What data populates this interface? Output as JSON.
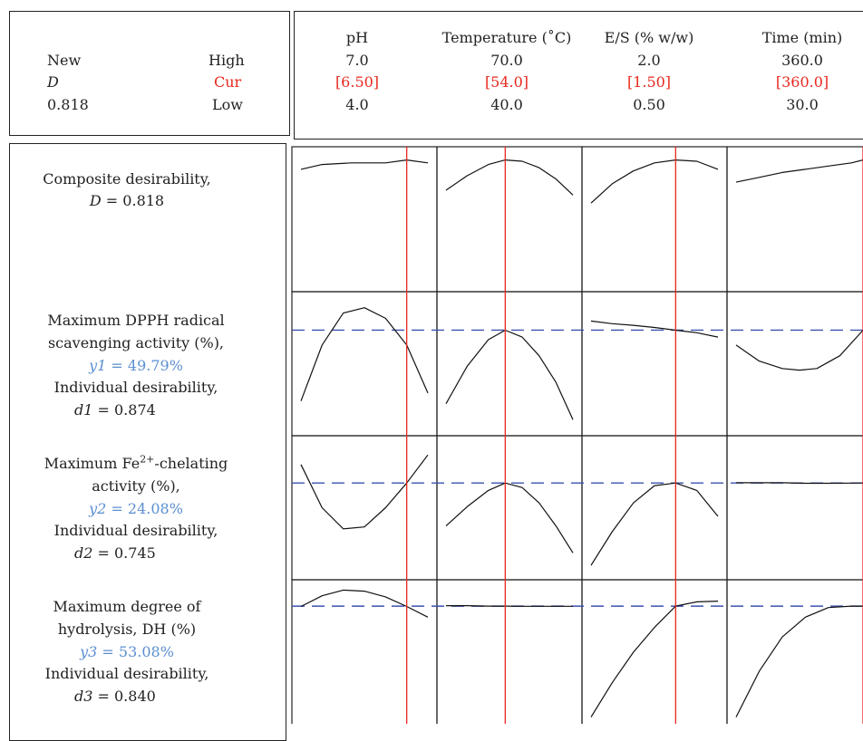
{
  "header": {
    "left": {
      "new_label": "New",
      "d_label": "D",
      "d_value": "0.818",
      "high_label": "High",
      "cur_label": "Cur",
      "low_label": "Low"
    },
    "factors": [
      {
        "name": "pH",
        "high": "7.0",
        "cur": "[6.50]",
        "low": "4.0"
      },
      {
        "name": "Temperature (˚C)",
        "high": "70.0",
        "cur": "[54.0]",
        "low": "40.0"
      },
      {
        "name": "E/S (% w/w)",
        "high": "2.0",
        "cur": "[1.50]",
        "low": "0.50"
      },
      {
        "name": "Time (min)",
        "high": "360.0",
        "cur": "[360.0]",
        "low": "30.0"
      }
    ]
  },
  "rows": [
    {
      "lines": [
        "Composite desirability,"
      ],
      "value_name": "D",
      "value_text": " = 0.818"
    },
    {
      "lines": [
        "Maximum DPPH radical",
        "scavenging activity (%),"
      ],
      "y_name": "y1",
      "y_text": " = 49.79%",
      "ind_label": "Individual desirability,",
      "d_name": "d1",
      "d_text": " = 0.874"
    },
    {
      "line1_pre": "Maximum Fe",
      "line1_sup": "2+",
      "line1_post": "-chelating",
      "line2": "activity (%),",
      "y_name": "y2",
      "y_text": " = 24.08%",
      "ind_label": "Individual desirability,",
      "d_name": "d2",
      "d_text": " = 0.745"
    },
    {
      "lines": [
        "Maximum degree of",
        "hydrolysis, DH (%)"
      ],
      "y_name": "y3",
      "y_text": " = 53.08%",
      "ind_label": "Individual desirability,",
      "d_name": "d3",
      "d_text": " = 0.840"
    }
  ],
  "chart_data": {
    "type": "line",
    "description_of_axes": "Response optimizer profile plot: 4 factors (columns) by 4 responses (rows)",
    "factors": [
      {
        "name": "pH",
        "low": 4.0,
        "high": 7.0,
        "current": 6.5
      },
      {
        "name": "Temperature (˚C)",
        "low": 40.0,
        "high": 70.0,
        "current": 54.0
      },
      {
        "name": "E/S (% w/w)",
        "low": 0.5,
        "high": 2.0,
        "current": 1.5
      },
      {
        "name": "Time (min)",
        "low": 30.0,
        "high": 360.0,
        "current": 360.0
      }
    ],
    "current_line_color": "#e8281e",
    "target_line_color": "#3a52b0",
    "curve_color": "#111111",
    "grid": false,
    "panels": [
      {
        "response": "D",
        "target": null,
        "curves": [
          {
            "x": [
              4.0,
              4.5,
              5.2,
              6.0,
              6.5,
              7.0
            ],
            "y": [
              0.76,
              0.79,
              0.8,
              0.8,
              0.818,
              0.8
            ]
          },
          {
            "x": [
              40,
              45,
              50,
              54,
              58,
              62,
              66,
              70
            ],
            "y": [
              0.63,
              0.72,
              0.79,
              0.818,
              0.81,
              0.77,
              0.7,
              0.6
            ]
          },
          {
            "x": [
              0.5,
              0.75,
              1.0,
              1.25,
              1.5,
              1.75,
              2.0
            ],
            "y": [
              0.55,
              0.67,
              0.75,
              0.8,
              0.818,
              0.81,
              0.76
            ]
          },
          {
            "x": [
              30,
              90,
              150,
              210,
              270,
              330,
              360
            ],
            "y": [
              0.68,
              0.71,
              0.74,
              0.76,
              0.78,
              0.8,
              0.818
            ]
          }
        ]
      },
      {
        "response": "y1",
        "target": 49.79,
        "curves": [
          {
            "x": [
              4.0,
              4.5,
              5.0,
              5.5,
              6.0,
              6.5,
              7.0
            ],
            "y": [
              36.5,
              47.0,
              53.0,
              54.0,
              52.0,
              47.0,
              38.0
            ]
          },
          {
            "x": [
              40,
              45,
              50,
              54,
              58,
              62,
              66,
              70
            ],
            "y": [
              36.0,
              43.0,
              48.0,
              49.79,
              48.5,
              45.0,
              40.0,
              33.0
            ]
          },
          {
            "x": [
              0.5,
              0.75,
              1.0,
              1.25,
              1.5,
              1.75,
              2.0
            ],
            "y": [
              51.5,
              51.0,
              50.7,
              50.3,
              49.79,
              49.3,
              48.5
            ]
          },
          {
            "x": [
              30,
              90,
              150,
              195,
              240,
              300,
              360
            ],
            "y": [
              47.0,
              44.0,
              42.6,
              42.3,
              42.6,
              45.0,
              49.79
            ]
          }
        ]
      },
      {
        "response": "y2",
        "target": 24.08,
        "curves": [
          {
            "x": [
              4.0,
              4.5,
              5.0,
              5.5,
              6.0,
              6.5,
              7.0
            ],
            "y": [
              26.0,
              21.5,
              19.3,
              19.5,
              21.5,
              24.08,
              27.0
            ]
          },
          {
            "x": [
              40,
              45,
              50,
              54,
              58,
              62,
              66,
              70
            ],
            "y": [
              19.6,
              21.6,
              23.3,
              24.08,
              23.6,
              22.0,
              19.6,
              16.8
            ]
          },
          {
            "x": [
              0.5,
              0.75,
              1.0,
              1.25,
              1.5,
              1.75,
              2.0
            ],
            "y": [
              15.5,
              19.0,
              22.0,
              23.8,
              24.08,
              23.3,
              20.6
            ]
          },
          {
            "x": [
              30,
              90,
              150,
              210,
              270,
              330,
              360
            ],
            "y": [
              24.1,
              24.1,
              24.1,
              24.05,
              24.05,
              24.07,
              24.08
            ]
          }
        ]
      },
      {
        "response": "y3",
        "target": 53.08,
        "curves": [
          {
            "x": [
              4.0,
              4.5,
              5.0,
              5.5,
              6.0,
              6.5,
              7.0
            ],
            "y": [
              53.0,
              55.8,
              57.3,
              57.0,
              55.5,
              53.0,
              50.2
            ]
          },
          {
            "x": [
              40,
              45,
              50,
              54,
              58,
              62,
              66,
              70
            ],
            "y": [
              53.2,
              53.2,
              53.1,
              53.08,
              53.05,
              53.05,
              53.05,
              53.05
            ]
          },
          {
            "x": [
              0.5,
              0.75,
              1.0,
              1.25,
              1.5,
              1.75,
              2.0
            ],
            "y": [
              24.0,
              33.0,
              41.0,
              47.5,
              53.08,
              54.2,
              54.4
            ]
          },
          {
            "x": [
              30,
              90,
              150,
              210,
              270,
              330,
              360
            ],
            "y": [
              24.0,
              36.0,
              45.0,
              50.2,
              52.7,
              53.1,
              53.08
            ]
          }
        ]
      }
    ]
  }
}
